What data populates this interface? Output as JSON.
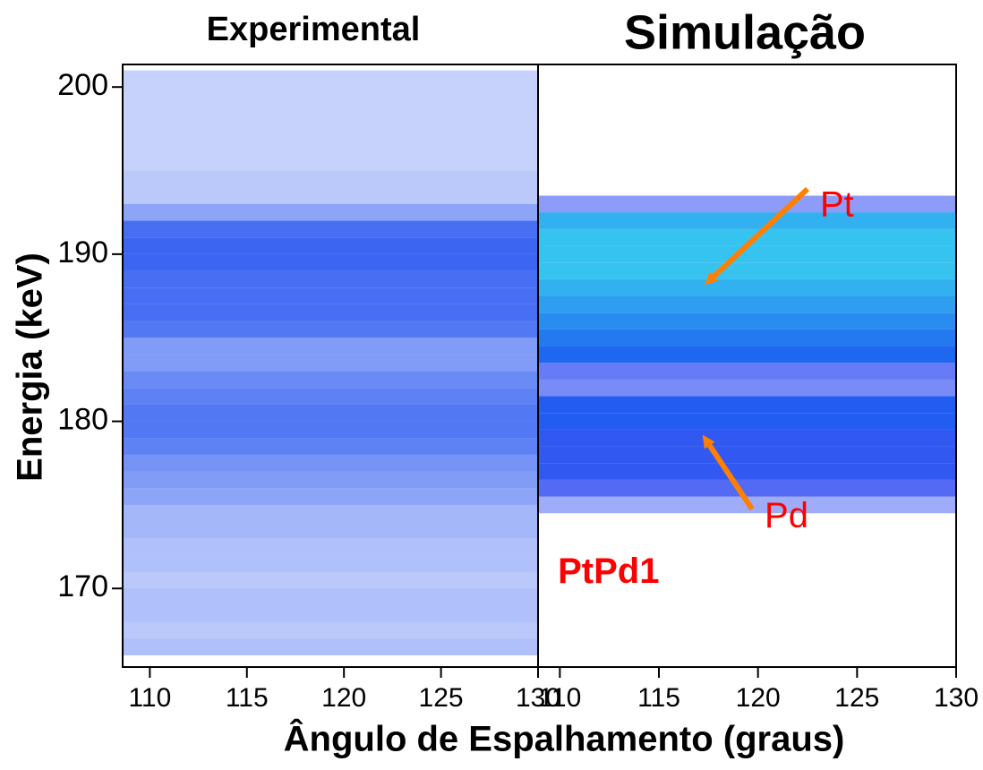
{
  "chart_data": [
    {
      "type": "heatmap",
      "title": "Experimental",
      "y_label": "Energia (keV)",
      "x_label": "Ângulo de Espalhamento (graus)",
      "xlim": [
        108.6,
        130
      ],
      "ylim": [
        165.3,
        201.35
      ],
      "xticks": [
        110,
        115,
        120,
        125,
        130
      ],
      "yticks": [
        170,
        180,
        190,
        200
      ],
      "y_bins": [
        166,
        167,
        168,
        169,
        170,
        171,
        172,
        173,
        174,
        175,
        176,
        177,
        178,
        179,
        180,
        181,
        182,
        183,
        184,
        185,
        186,
        187,
        188,
        189,
        190,
        191,
        192,
        193,
        194,
        195,
        196,
        197,
        198,
        199,
        200,
        201
      ],
      "values": [
        0.35,
        0.3,
        0.35,
        0.35,
        0.3,
        0.35,
        0.35,
        0.4,
        0.4,
        0.5,
        0.55,
        0.6,
        0.7,
        0.75,
        0.75,
        0.7,
        0.65,
        0.55,
        0.55,
        0.75,
        0.8,
        0.8,
        0.8,
        0.85,
        0.85,
        0.8,
        0.5,
        0.3,
        0.3,
        0.25,
        0.25,
        0.25,
        0.25,
        0.25,
        0.25
      ],
      "colors": [
        "#1a4bf0"
      ]
    },
    {
      "type": "heatmap",
      "title": "Simulação",
      "xlim": [
        108.9,
        130
      ],
      "ylim": [
        165.3,
        201.35
      ],
      "xticks": [
        110,
        115,
        120,
        125,
        130
      ],
      "y_bins": [
        174.5,
        175.5,
        176.5,
        177.5,
        178.5,
        179.5,
        180.5,
        181.5,
        182.5,
        183.5,
        184.5,
        185.5,
        186.5,
        187.5,
        188.5,
        189.5,
        190.5,
        191.5,
        192.5,
        193.5
      ],
      "values": [
        0.25,
        0.45,
        0.55,
        0.55,
        0.55,
        0.6,
        0.6,
        0.35,
        0.4,
        0.65,
        0.7,
        0.75,
        0.8,
        0.85,
        0.9,
        0.9,
        0.9,
        0.85,
        0.3
      ],
      "colors": [
        "#1030f0",
        "#40e8f0"
      ],
      "annotations": [
        {
          "text": "Pt",
          "xy": [
            117.3,
            188.15
          ],
          "xytext": [
            122.5,
            193.9
          ],
          "color": "#ff0000",
          "arrow_color": "#ff8000"
        },
        {
          "text": "Pd",
          "xy": [
            117.2,
            179.2
          ],
          "xytext": [
            119.7,
            174.75
          ],
          "color": "#ff0000",
          "arrow_color": "#ff8000"
        },
        {
          "text": "PtPd1",
          "xytext": [
            109.9,
            170.9
          ],
          "color": "#ff0000",
          "bold": true
        }
      ]
    }
  ]
}
